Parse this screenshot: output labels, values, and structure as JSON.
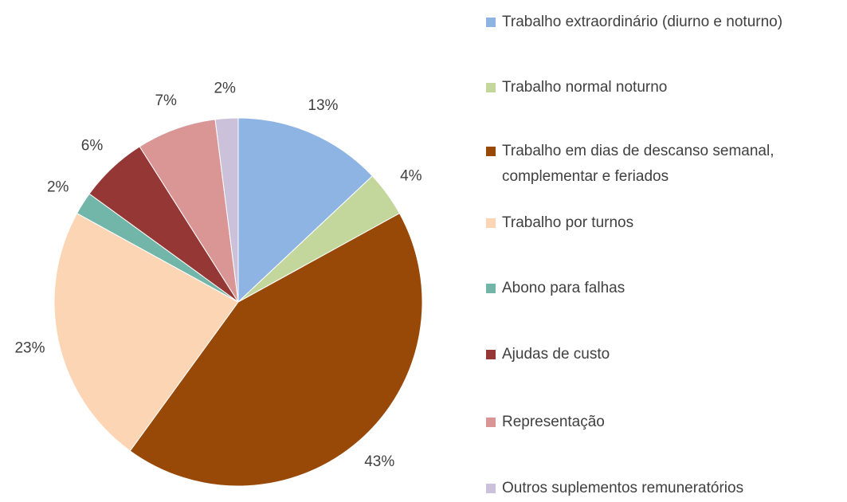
{
  "chart_data": {
    "type": "pie",
    "categories": [
      "Trabalho extraordinário (diurno e noturno)",
      "Trabalho normal noturno",
      "Trabalho em dias de descanso semanal, complementar e feriados",
      "Trabalho por turnos",
      "Abono para falhas",
      "Ajudas de custo",
      "Representação",
      "Outros suplementos remuneratórios"
    ],
    "values": [
      13,
      4,
      43,
      23,
      2,
      6,
      7,
      2
    ],
    "value_labels": [
      "13%",
      "4%",
      "43%",
      "23%",
      "2%",
      "6%",
      "7%",
      "2%"
    ],
    "colors": [
      "#8eb4e3",
      "#c3d69b",
      "#984807",
      "#fcd5b5",
      "#72b6a9",
      "#953735",
      "#d99694",
      "#ccc1da"
    ],
    "legend": "right"
  }
}
